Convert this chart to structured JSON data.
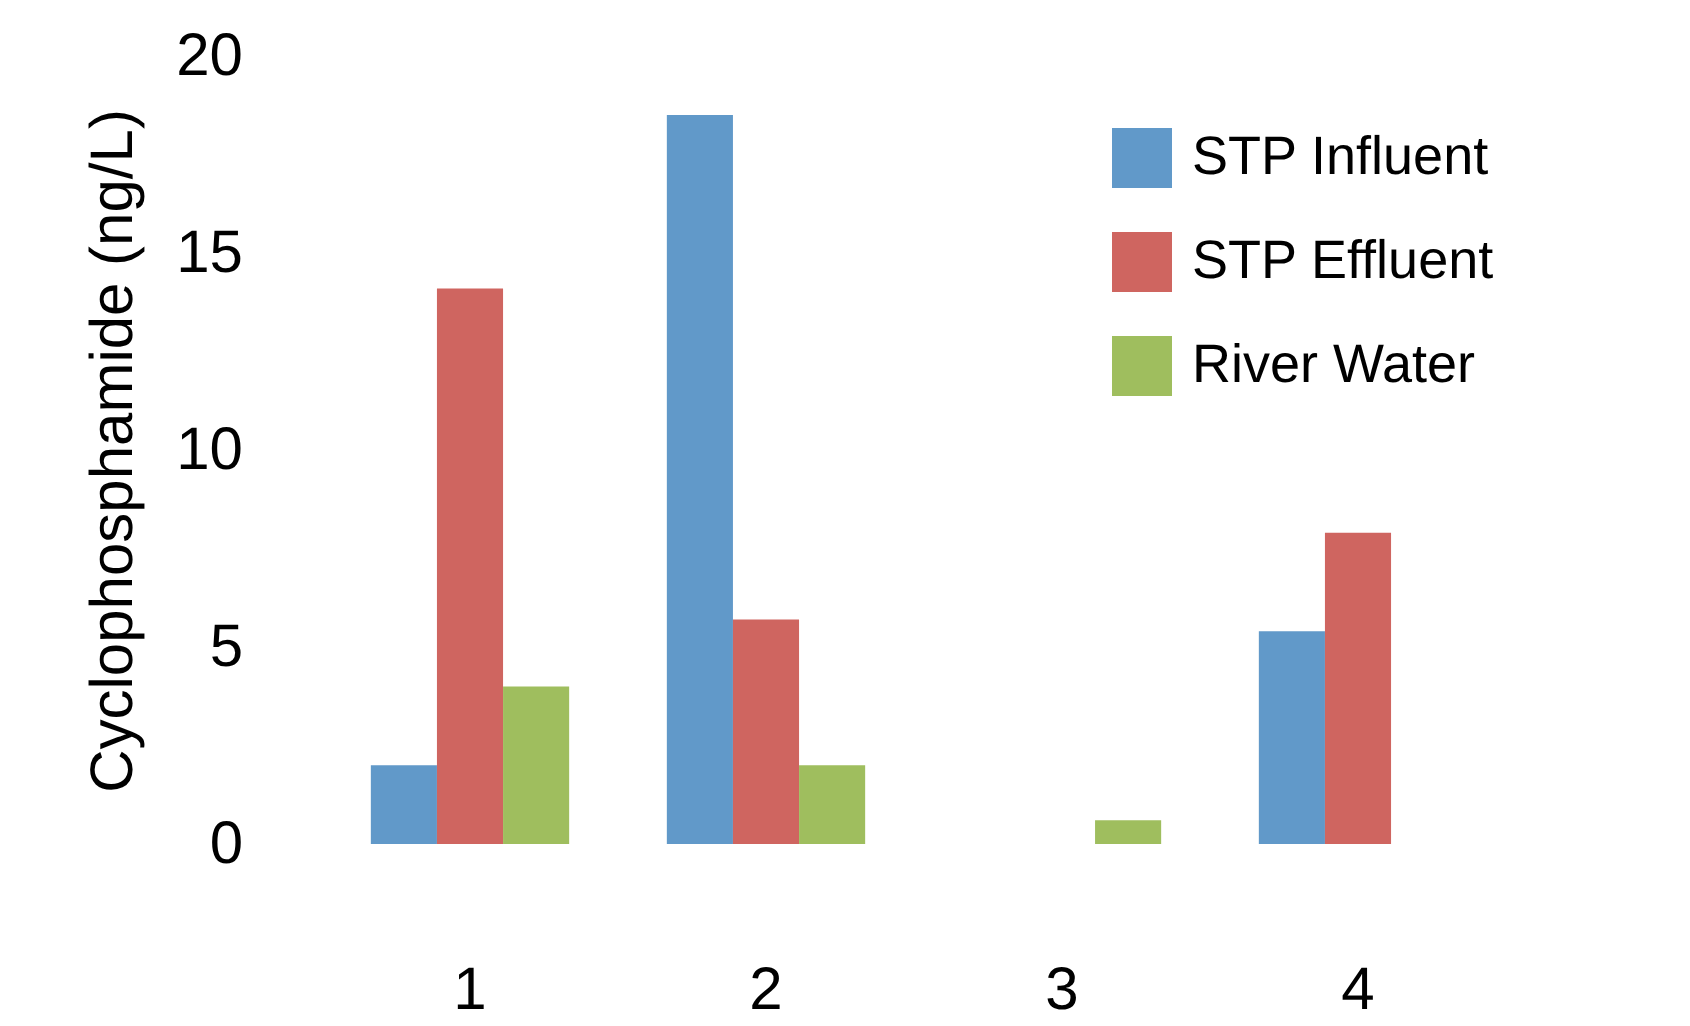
{
  "chart_data": {
    "type": "bar",
    "ylabel": "Cyclophosphamide (ng/L)",
    "categories": [
      "1",
      "2",
      "3",
      "4"
    ],
    "series": [
      {
        "name": "STP Influent",
        "color": "#6199c9",
        "values": [
          2.0,
          18.5,
          null,
          5.4
        ]
      },
      {
        "name": "STP Effluent",
        "color": "#cf6560",
        "values": [
          14.1,
          5.7,
          null,
          7.9
        ]
      },
      {
        "name": "River Water",
        "color": "#9fbe5e",
        "values": [
          4.0,
          2.0,
          0.6,
          null
        ]
      }
    ],
    "ylim": [
      0,
      20
    ],
    "yticks": [
      0,
      5,
      10,
      15,
      20
    ],
    "legend": "top right"
  }
}
